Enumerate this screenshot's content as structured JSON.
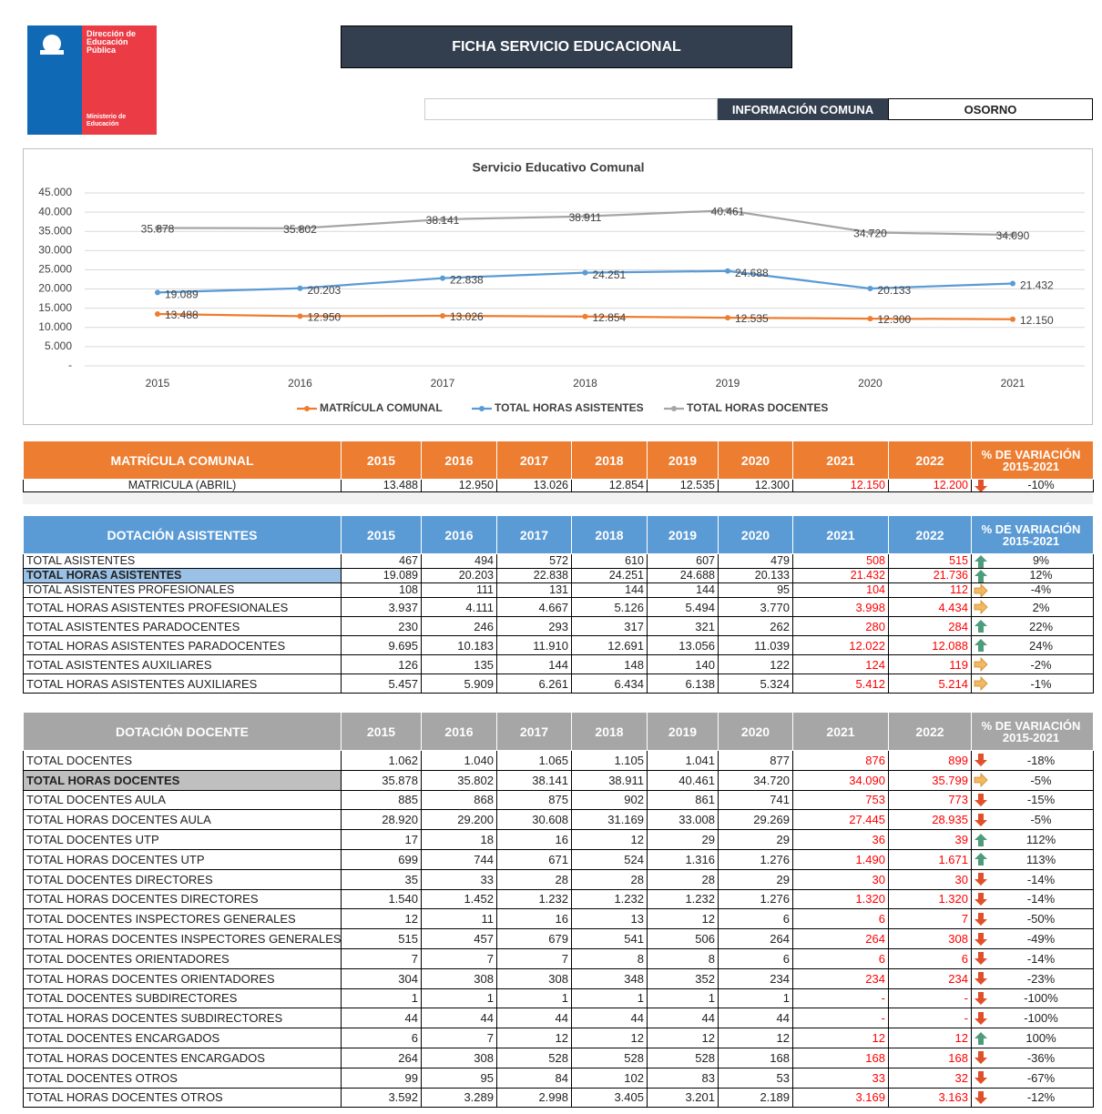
{
  "header": {
    "logo": {
      "line1": "Dirección de",
      "line2": "Educación",
      "line3": "Pública",
      "ministry1": "Ministerio de",
      "ministry2": "Educación"
    },
    "title": "FICHA SERVICIO EDUCACIONAL",
    "info_label": "INFORMACIÓN COMUNA",
    "commune": "OSORNO"
  },
  "chart_data": {
    "type": "line",
    "title": "Servicio Educativo Comunal",
    "categories": [
      "2015",
      "2016",
      "2017",
      "2018",
      "2019",
      "2020",
      "2021"
    ],
    "ylim": [
      0,
      45000
    ],
    "yticks": [
      {
        "value": 0,
        "label": "-"
      },
      {
        "value": 5000,
        "label": "5.000"
      },
      {
        "value": 10000,
        "label": "10.000"
      },
      {
        "value": 15000,
        "label": "15.000"
      },
      {
        "value": 20000,
        "label": "20.000"
      },
      {
        "value": 25000,
        "label": "25.000"
      },
      {
        "value": 30000,
        "label": "30.000"
      },
      {
        "value": 35000,
        "label": "35.000"
      },
      {
        "value": 40000,
        "label": "40.000"
      },
      {
        "value": 45000,
        "label": "45.000"
      }
    ],
    "grid": true,
    "legend": "bottom",
    "series": [
      {
        "name": "MATRÍCULA COMUNAL",
        "color": "#ed7d31",
        "values": [
          13488,
          12950,
          13026,
          12854,
          12535,
          12300,
          12150
        ],
        "value_labels": [
          "13.488",
          "12.950",
          "13.026",
          "12.854",
          "12.535",
          "12.300",
          "12.150"
        ]
      },
      {
        "name": "TOTAL HORAS ASISTENTES",
        "color": "#5b9bd5",
        "values": [
          19089,
          20203,
          22838,
          24251,
          24688,
          20133,
          21432
        ],
        "value_labels": [
          "19.089",
          "20.203",
          "22.838",
          "24.251",
          "24.688",
          "20.133",
          "21.432"
        ]
      },
      {
        "name": "TOTAL HORAS DOCENTES",
        "color": "#a5a5a5",
        "values": [
          35878,
          35802,
          38141,
          38911,
          40461,
          34720,
          34090
        ],
        "value_labels": [
          "35.878",
          "35.802",
          "38.141",
          "38.911",
          "40.461",
          "34.720",
          "34.090"
        ]
      }
    ]
  },
  "tables": [
    {
      "title": "MATRÍCULA COMUNAL",
      "color": "#ed7d31",
      "years": [
        "2015",
        "2016",
        "2017",
        "2018",
        "2019",
        "2020",
        "2021",
        "2022"
      ],
      "variation_title": [
        "% DE VARIACIÓN",
        "2015-2021"
      ],
      "rows": [
        {
          "label": "MATRÍCULA (ABRIL)",
          "values": [
            "13.488",
            "12.950",
            "13.026",
            "12.854",
            "12.535",
            "12.300",
            "12.150",
            "12.200"
          ],
          "trend": "down",
          "variation": "-10%"
        }
      ]
    },
    {
      "title": "DOTACIÓN ASISTENTES",
      "color": "#5b9bd5",
      "years": [
        "2015",
        "2016",
        "2017",
        "2018",
        "2019",
        "2020",
        "2021",
        "2022"
      ],
      "variation_title": [
        "% DE VARIACIÓN",
        "2015-2021"
      ],
      "rows": [
        {
          "label": "TOTAL ASISTENTES",
          "values": [
            "467",
            "494",
            "572",
            "610",
            "607",
            "479",
            "508",
            "515"
          ],
          "trend": "up",
          "variation": "9%"
        },
        {
          "label": "TOTAL HORAS ASISTENTES",
          "values": [
            "19.089",
            "20.203",
            "22.838",
            "24.251",
            "24.688",
            "20.133",
            "21.432",
            "21.736"
          ],
          "trend": "up",
          "variation": "12%",
          "highlight": "#9bc2e6"
        },
        {
          "label": "TOTAL ASISTENTES PROFESIONALES",
          "values": [
            "108",
            "111",
            "131",
            "144",
            "144",
            "95",
            "104",
            "112"
          ],
          "trend": "right",
          "variation": "-4%"
        },
        {
          "label": "TOTAL HORAS ASISTENTES PROFESIONALES",
          "values": [
            "3.937",
            "4.111",
            "4.667",
            "5.126",
            "5.494",
            "3.770",
            "3.998",
            "4.434"
          ],
          "trend": "right",
          "variation": "2%"
        },
        {
          "label": "TOTAL ASISTENTES PARADOCENTES",
          "values": [
            "230",
            "246",
            "293",
            "317",
            "321",
            "262",
            "280",
            "284"
          ],
          "trend": "up",
          "variation": "22%"
        },
        {
          "label": "TOTAL HORAS ASISTENTES PARADOCENTES",
          "values": [
            "9.695",
            "10.183",
            "11.910",
            "12.691",
            "13.056",
            "11.039",
            "12.022",
            "12.088"
          ],
          "trend": "up",
          "variation": "24%"
        },
        {
          "label": "TOTAL ASISTENTES AUXILIARES",
          "values": [
            "126",
            "135",
            "144",
            "148",
            "140",
            "122",
            "124",
            "119"
          ],
          "trend": "right",
          "variation": "-2%"
        },
        {
          "label": "TOTAL HORAS ASISTENTES AUXILIARES",
          "values": [
            "5.457",
            "5.909",
            "6.261",
            "6.434",
            "6.138",
            "5.324",
            "5.412",
            "5.214"
          ],
          "trend": "right",
          "variation": "-1%"
        }
      ]
    },
    {
      "title": "DOTACIÓN DOCENTE",
      "color": "#a6a6a6",
      "years": [
        "2015",
        "2016",
        "2017",
        "2018",
        "2019",
        "2020",
        "2021",
        "2022"
      ],
      "variation_title": [
        "% DE VARIACIÓN",
        "2015-2021"
      ],
      "rows": [
        {
          "label": "TOTAL DOCENTES",
          "values": [
            "1.062",
            "1.040",
            "1.065",
            "1.105",
            "1.041",
            "877",
            "876",
            "899"
          ],
          "trend": "down",
          "variation": "-18%"
        },
        {
          "label": "TOTAL HORAS DOCENTES",
          "values": [
            "35.878",
            "35.802",
            "38.141",
            "38.911",
            "40.461",
            "34.720",
            "34.090",
            "35.799"
          ],
          "trend": "right",
          "variation": "-5%",
          "highlight": "#bfbfbf"
        },
        {
          "label": "TOTAL DOCENTES AULA",
          "values": [
            "885",
            "868",
            "875",
            "902",
            "861",
            "741",
            "753",
            "773"
          ],
          "trend": "down",
          "variation": "-15%"
        },
        {
          "label": "TOTAL HORAS DOCENTES AULA",
          "values": [
            "28.920",
            "29.200",
            "30.608",
            "31.169",
            "33.008",
            "29.269",
            "27.445",
            "28.935"
          ],
          "trend": "down",
          "variation": "-5%"
        },
        {
          "label": "TOTAL DOCENTES UTP",
          "values": [
            "17",
            "18",
            "16",
            "12",
            "29",
            "29",
            "36",
            "39"
          ],
          "trend": "up",
          "variation": "112%"
        },
        {
          "label": "TOTAL HORAS DOCENTES UTP",
          "values": [
            "699",
            "744",
            "671",
            "524",
            "1.316",
            "1.276",
            "1.490",
            "1.671"
          ],
          "trend": "up",
          "variation": "113%"
        },
        {
          "label": "TOTAL DOCENTES DIRECTORES",
          "values": [
            "35",
            "33",
            "28",
            "28",
            "28",
            "29",
            "30",
            "30"
          ],
          "trend": "down",
          "variation": "-14%"
        },
        {
          "label": "TOTAL HORAS DOCENTES DIRECTORES",
          "values": [
            "1.540",
            "1.452",
            "1.232",
            "1.232",
            "1.232",
            "1.276",
            "1.320",
            "1.320"
          ],
          "trend": "down",
          "variation": "-14%"
        },
        {
          "label": "TOTAL DOCENTES INSPECTORES GENERALES",
          "values": [
            "12",
            "11",
            "16",
            "13",
            "12",
            "6",
            "6",
            "7"
          ],
          "trend": "down",
          "variation": "-50%"
        },
        {
          "label": "TOTAL HORAS DOCENTES INSPECTORES GENERALES",
          "values": [
            "515",
            "457",
            "679",
            "541",
            "506",
            "264",
            "264",
            "308"
          ],
          "trend": "down",
          "variation": "-49%"
        },
        {
          "label": "TOTAL DOCENTES ORIENTADORES",
          "values": [
            "7",
            "7",
            "7",
            "8",
            "8",
            "6",
            "6",
            "6"
          ],
          "trend": "down",
          "variation": "-14%"
        },
        {
          "label": "TOTAL HORAS DOCENTES ORIENTADORES",
          "values": [
            "304",
            "308",
            "308",
            "348",
            "352",
            "234",
            "234",
            "234"
          ],
          "trend": "down",
          "variation": "-23%"
        },
        {
          "label": "TOTAL DOCENTES SUBDIRECTORES",
          "values": [
            "1",
            "1",
            "1",
            "1",
            "1",
            "1",
            "-",
            "-"
          ],
          "trend": "down",
          "variation": "-100%"
        },
        {
          "label": "TOTAL HORAS DOCENTES SUBDIRECTORES",
          "values": [
            "44",
            "44",
            "44",
            "44",
            "44",
            "44",
            "-",
            "-"
          ],
          "trend": "down",
          "variation": "-100%"
        },
        {
          "label": "TOTAL DOCENTES ENCARGADOS",
          "values": [
            "6",
            "7",
            "12",
            "12",
            "12",
            "12",
            "12",
            "12"
          ],
          "trend": "up",
          "variation": "100%"
        },
        {
          "label": "TOTAL HORAS DOCENTES ENCARGADOS",
          "values": [
            "264",
            "308",
            "528",
            "528",
            "528",
            "168",
            "168",
            "168"
          ],
          "trend": "down",
          "variation": "-36%"
        },
        {
          "label": "TOTAL DOCENTES OTROS",
          "values": [
            "99",
            "95",
            "84",
            "102",
            "83",
            "53",
            "33",
            "32"
          ],
          "trend": "down",
          "variation": "-67%"
        },
        {
          "label": "TOTAL HORAS DOCENTES OTROS",
          "values": [
            "3.592",
            "3.289",
            "2.998",
            "3.405",
            "3.201",
            "2.189",
            "3.169",
            "3.163"
          ],
          "trend": "down",
          "variation": "-12%"
        }
      ]
    }
  ]
}
